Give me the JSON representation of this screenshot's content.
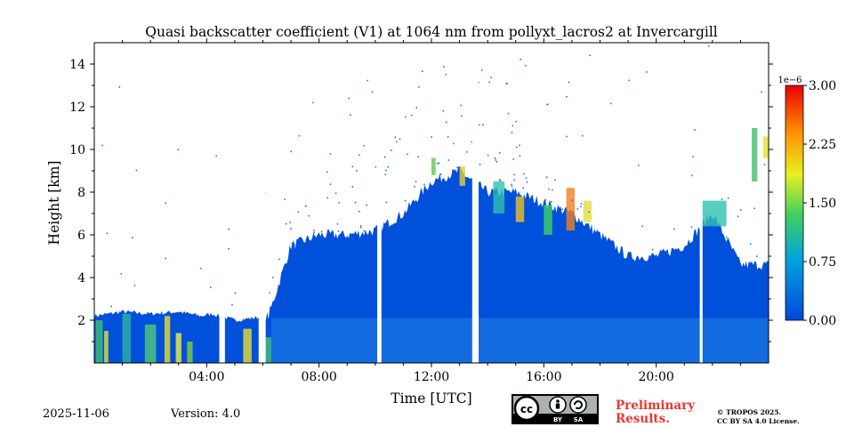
{
  "chart_data": {
    "type": "heatmap",
    "title": "Quasi backscatter coefficient (V1) at 1064 nm from pollyxt_lacros2 at Invercargill",
    "xlabel": "Time [UTC]",
    "ylabel": "Height [km]",
    "xlim_hours": [
      0,
      24
    ],
    "ylim_km": [
      0,
      15
    ],
    "x_ticks": [
      {
        "hour": 4,
        "label": "04:00"
      },
      {
        "hour": 8,
        "label": "08:00"
      },
      {
        "hour": 12,
        "label": "12:00"
      },
      {
        "hour": 16,
        "label": "16:00"
      },
      {
        "hour": 20,
        "label": "20:00"
      }
    ],
    "y_ticks": [
      {
        "value": 2,
        "label": "2"
      },
      {
        "value": 4,
        "label": "4"
      },
      {
        "value": 6,
        "label": "6"
      },
      {
        "value": 8,
        "label": "8"
      },
      {
        "value": 10,
        "label": "10"
      },
      {
        "value": 12,
        "label": "12"
      },
      {
        "value": 14,
        "label": "14"
      }
    ],
    "colorbar": {
      "range": [
        0,
        3e-06
      ],
      "multiplier_label": "1e−6",
      "ticks": [
        {
          "value": 0.0,
          "label": "0.00"
        },
        {
          "value": 0.75,
          "label": "0.75"
        },
        {
          "value": 1.5,
          "label": "1.50"
        },
        {
          "value": 2.25,
          "label": "2.25"
        },
        {
          "value": 3.0,
          "label": "3.00"
        }
      ],
      "colormap": "jet-like (blue → cyan → green → yellow → red)"
    },
    "signal_top_km": [
      [
        0.0,
        2.2
      ],
      [
        1.0,
        2.4
      ],
      [
        2.0,
        2.3
      ],
      [
        3.0,
        2.4
      ],
      [
        3.8,
        2.2
      ],
      [
        4.2,
        2.3
      ],
      [
        5.0,
        2.0
      ],
      [
        6.2,
        2.2
      ],
      [
        7.0,
        5.5
      ],
      [
        8.0,
        6.0
      ],
      [
        9.0,
        6.0
      ],
      [
        10.0,
        6.2
      ],
      [
        11.0,
        7.0
      ],
      [
        12.0,
        8.5
      ],
      [
        13.0,
        9.0
      ],
      [
        14.0,
        8.0
      ],
      [
        15.0,
        8.0
      ],
      [
        16.0,
        7.5
      ],
      [
        17.0,
        7.0
      ],
      [
        18.0,
        6.0
      ],
      [
        19.0,
        5.0
      ],
      [
        20.0,
        5.0
      ],
      [
        21.0,
        5.5
      ],
      [
        22.0,
        7.0
      ],
      [
        23.0,
        4.6
      ],
      [
        24.0,
        4.6
      ]
    ],
    "data_gaps_hours": [
      [
        4.45,
        4.65
      ],
      [
        5.85,
        6.1
      ],
      [
        10.07,
        10.22
      ],
      [
        13.45,
        13.68
      ],
      [
        21.55,
        21.65
      ]
    ]
  },
  "footer": {
    "date": "2025-11-06",
    "version": "Version: 4.0",
    "preliminary_line1": "Preliminary",
    "preliminary_line2": "Results.",
    "copyright_line1": "© TROPOS 2025.",
    "copyright_line2": "CC BY SA 4.0 License.",
    "license_badge": {
      "by": "BY",
      "sa": "SA"
    }
  }
}
